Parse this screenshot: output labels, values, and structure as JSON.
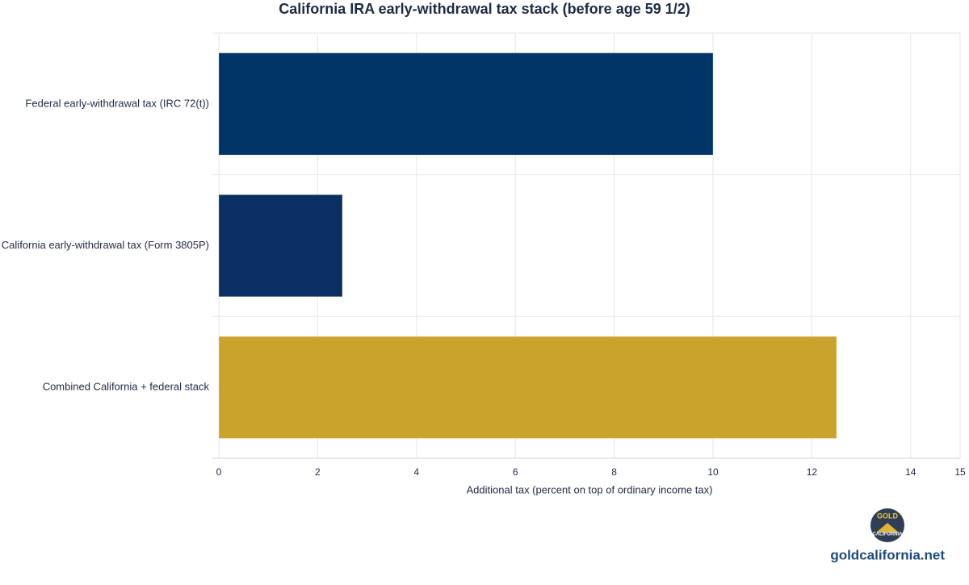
{
  "chart_data": {
    "type": "barh",
    "title": "California IRA early-withdrawal tax stack (before age 59 1/2)",
    "x_label": "Additional tax (percent on top of ordinary income tax)",
    "categories": [
      "Federal early-withdrawal tax (IRC 72(t))",
      "California early-withdrawal tax (Form 3805P)",
      "Combined California + federal stack"
    ],
    "values": [
      10,
      2.5,
      12.5
    ],
    "colors": [
      "#003366",
      "#0b2e63",
      "#c9a32b"
    ],
    "xlim": [
      0,
      15
    ],
    "xticks": [
      0,
      2,
      4,
      6,
      8,
      10,
      12,
      14,
      15
    ],
    "grid": true
  },
  "branding": {
    "logo_top": "GOLD",
    "logo_bottom": "CALIFORNIA",
    "site": "goldcalifornia.net"
  }
}
